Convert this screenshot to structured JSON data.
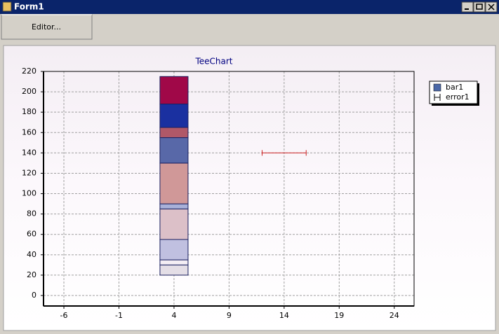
{
  "window": {
    "title": "Form1"
  },
  "toolbar": {
    "button": "Editor..."
  },
  "chart_data": {
    "type": "bar",
    "title": "TeeChart",
    "stacked": true,
    "xlim": [
      -7.85,
      25.8
    ],
    "xticks": [
      -6,
      -1,
      4,
      9,
      14,
      19,
      24
    ],
    "ylim": [
      -10.3,
      220
    ],
    "yticks": [
      0,
      20,
      40,
      60,
      80,
      100,
      120,
      140,
      160,
      180,
      200,
      220
    ],
    "grid": true,
    "legend": "right",
    "series": [
      {
        "name": "bar1",
        "type": "bar",
        "color": "#4a68a8",
        "x": 4,
        "origin": 20,
        "values": [
          10,
          5,
          20,
          30,
          5,
          40,
          25,
          10,
          23,
          27
        ],
        "colors": [
          "#e4dee6",
          "#f4eef4",
          "#c0c0e0",
          "#dcc0c8",
          "#a8b0d8",
          "#d09898",
          "#5868a8",
          "#b05868",
          "#1a30a0",
          "#a00848"
        ]
      },
      {
        "name": "error1",
        "type": "error",
        "color": "#cc2020",
        "x": 14,
        "y": 140,
        "error": 2
      }
    ]
  }
}
